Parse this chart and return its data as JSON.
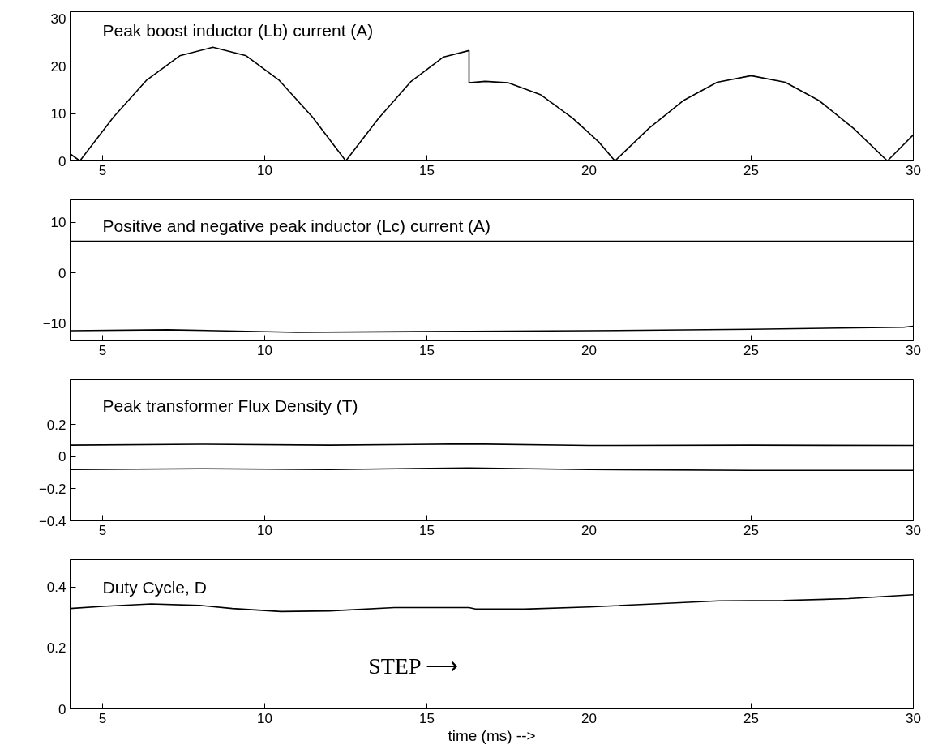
{
  "chart_data": [
    {
      "type": "line",
      "title": "Peak boost inductor (Lb) current (A)",
      "xlim": [
        4,
        30
      ],
      "xticks": [
        5,
        10,
        15,
        20,
        25,
        30
      ],
      "ylim": [
        0,
        31.5
      ],
      "yticks": [
        0,
        10,
        20,
        30
      ],
      "grid": false,
      "series": [
        {
          "color": "#000000",
          "x": [
            4,
            4.3,
            5.33,
            6.35,
            7.38,
            8.4,
            9.43,
            10.45,
            11.48,
            12.5,
            13.5,
            14.5,
            15.5,
            16.3,
            16.3,
            16.8,
            17.5,
            18.5,
            19.5,
            20.3,
            20.8,
            21.85,
            22.9,
            23.95,
            25,
            26.05,
            27.1,
            28.15,
            29.2,
            30
          ],
          "values": [
            1.5,
            0,
            9.2,
            17.0,
            22.2,
            24,
            22.2,
            17.0,
            9.2,
            0,
            8.9,
            16.7,
            21.9,
            23.3,
            16.5,
            16.8,
            16.5,
            14,
            9,
            4,
            0,
            6.9,
            12.7,
            16.6,
            18,
            16.6,
            12.7,
            6.9,
            0,
            5.5
          ]
        }
      ],
      "ref_lines": [
        {
          "axis": "x",
          "value": 16.3,
          "color": "#000000"
        }
      ]
    },
    {
      "type": "line",
      "title": "Positive and negative peak inductor (Lc) current (A)",
      "xlim": [
        4,
        30
      ],
      "xticks": [
        5,
        10,
        15,
        20,
        25,
        30
      ],
      "ylim": [
        -13.5,
        14.5
      ],
      "yticks": [
        {
          "value": -10,
          "label": "−10"
        },
        0,
        10
      ],
      "grid": false,
      "series": [
        {
          "color": "#000000",
          "x": [
            4,
            10,
            16.3,
            20,
            25,
            30
          ],
          "values": [
            6.3,
            6.3,
            6.3,
            6.3,
            6.3,
            6.3
          ]
        },
        {
          "color": "#000000",
          "x": [
            4,
            7,
            11,
            16.3,
            20,
            25,
            29.7,
            30
          ],
          "values": [
            -11.5,
            -11.3,
            -11.8,
            -11.6,
            -11.5,
            -11.2,
            -10.8,
            -10.6
          ]
        }
      ],
      "ref_lines": [
        {
          "axis": "x",
          "value": 16.3,
          "color": "#000000"
        }
      ]
    },
    {
      "type": "line",
      "title": "Peak transformer Flux Density (T)",
      "xlim": [
        4,
        30
      ],
      "xticks": [
        5,
        10,
        15,
        20,
        25,
        30
      ],
      "ylim": [
        -0.4,
        0.48
      ],
      "yticks": [
        {
          "value": -0.4,
          "label": "−0.4"
        },
        {
          "value": -0.2,
          "label": "−0.2"
        },
        0,
        0.2
      ],
      "grid": false,
      "series": [
        {
          "color": "#000000",
          "x": [
            4,
            8,
            12,
            16.3,
            20,
            25,
            30
          ],
          "values": [
            0.072,
            0.078,
            0.072,
            0.08,
            0.07,
            0.072,
            0.07
          ]
        },
        {
          "color": "#000000",
          "x": [
            4,
            8,
            12,
            16.3,
            20,
            25,
            30
          ],
          "values": [
            -0.08,
            -0.075,
            -0.08,
            -0.07,
            -0.08,
            -0.085,
            -0.085
          ]
        }
      ],
      "ref_lines": [
        {
          "axis": "x",
          "value": 16.3,
          "color": "#000000"
        }
      ]
    },
    {
      "type": "line",
      "title": "Duty Cycle, D",
      "xlabel": "time (ms) -->",
      "xlim": [
        4,
        30
      ],
      "xticks": [
        5,
        10,
        15,
        20,
        25,
        30
      ],
      "ylim": [
        0,
        0.49
      ],
      "yticks": [
        0,
        0.2,
        0.4
      ],
      "grid": false,
      "series": [
        {
          "color": "#000000",
          "x": [
            4,
            5,
            6.5,
            8,
            9,
            10.5,
            12,
            14,
            16.3,
            16.5,
            18,
            20,
            22,
            24,
            26,
            28,
            30
          ],
          "values": [
            0.33,
            0.337,
            0.345,
            0.34,
            0.33,
            0.32,
            0.322,
            0.333,
            0.333,
            0.328,
            0.328,
            0.335,
            0.345,
            0.355,
            0.356,
            0.362,
            0.375
          ]
        }
      ],
      "ref_lines": [
        {
          "axis": "x",
          "value": 16.3,
          "color": "#000000"
        }
      ],
      "annotations": [
        {
          "text": "STEP ⟶",
          "x": 16.3,
          "y": 0.14
        }
      ]
    }
  ]
}
